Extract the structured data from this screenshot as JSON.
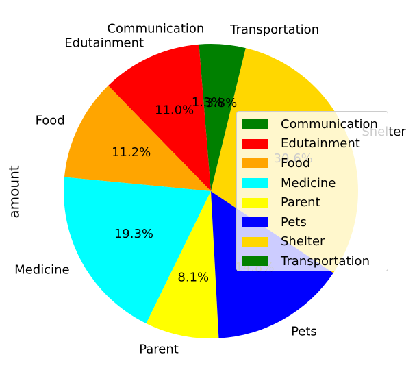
{
  "chart_data": {
    "type": "pie",
    "ylabel": "amount",
    "categories": [
      "Communication",
      "Edutainment",
      "Food",
      "Medicine",
      "Parent",
      "Pets",
      "Shelter",
      "Transportation"
    ],
    "values": [
      1.3,
      11.0,
      11.2,
      19.3,
      8.1,
      14.8,
      30.6,
      3.8
    ],
    "value_labels": [
      "1.3%",
      "11.0%",
      "11.2%",
      "19.3%",
      "8.1%",
      "14.8%",
      "30.6%",
      "3.8%"
    ],
    "colors": [
      "#008000",
      "#ff0000",
      "#ffa500",
      "#00ffff",
      "#ffff00",
      "#0000ff",
      "#ffd700",
      "#008000"
    ],
    "start_angle_deg": 90,
    "direction": "counterclockwise",
    "legend_placement": "center-right"
  }
}
